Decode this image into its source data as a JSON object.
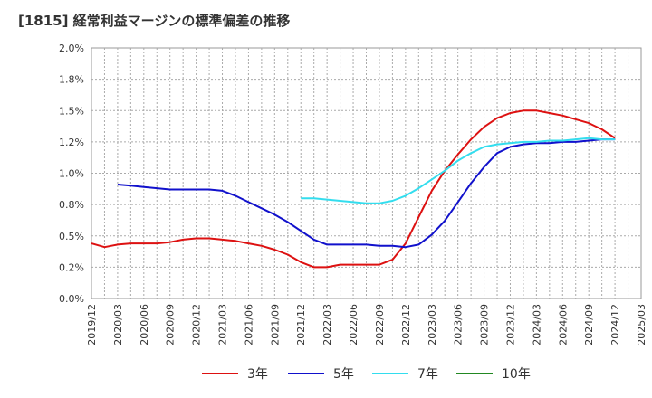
{
  "chart_data": {
    "type": "line",
    "title": "[1815]  経常利益マージンの標準偏差の推移",
    "ylim": [
      0.0,
      2.0
    ],
    "y_ticks": [
      0.0,
      0.25,
      0.5,
      0.75,
      1.0,
      1.25,
      1.5,
      1.75,
      2.0
    ],
    "y_tick_labels": [
      "0.0%",
      "0.2%",
      "0.5%",
      "0.8%",
      "1.0%",
      "1.2%",
      "1.5%",
      "1.8%",
      "2.0%"
    ],
    "x_tick_labels": [
      "2019/12",
      "2020/03",
      "2020/06",
      "2020/09",
      "2020/12",
      "2021/03",
      "2021/06",
      "2021/09",
      "2021/12",
      "2022/03",
      "2022/06",
      "2022/09",
      "2022/12",
      "2023/03",
      "2023/06",
      "2023/09",
      "2023/12",
      "2024/03",
      "2024/06",
      "2024/09",
      "2024/12",
      "2025/03"
    ],
    "grid": true,
    "legend_position": "bottom",
    "series": [
      {
        "name": "3年",
        "color": "#dd1111",
        "values": [
          0.44,
          0.41,
          0.43,
          0.44,
          0.44,
          0.44,
          0.45,
          0.47,
          0.48,
          0.48,
          0.47,
          0.46,
          0.44,
          0.42,
          0.39,
          0.35,
          0.29,
          0.25,
          0.25,
          0.27,
          0.27,
          0.27,
          0.27,
          0.31,
          0.44,
          0.65,
          0.86,
          1.02,
          1.15,
          1.27,
          1.37,
          1.44,
          1.48,
          1.5,
          1.5,
          1.48,
          1.46,
          1.43,
          1.4,
          1.35,
          1.28,
          null
        ]
      },
      {
        "name": "5年",
        "color": "#1111cc",
        "values": [
          null,
          null,
          0.91,
          0.9,
          0.89,
          0.88,
          0.87,
          0.87,
          0.87,
          0.87,
          0.86,
          0.82,
          0.77,
          0.72,
          0.67,
          0.61,
          0.54,
          0.47,
          0.43,
          0.43,
          0.43,
          0.43,
          0.42,
          0.42,
          0.41,
          0.43,
          0.51,
          0.62,
          0.77,
          0.92,
          1.05,
          1.16,
          1.21,
          1.23,
          1.24,
          1.24,
          1.25,
          1.25,
          1.26,
          1.27,
          1.27,
          null
        ]
      },
      {
        "name": "7年",
        "color": "#33ddee",
        "values": [
          null,
          null,
          null,
          null,
          null,
          null,
          null,
          null,
          null,
          null,
          null,
          null,
          null,
          null,
          null,
          null,
          0.8,
          0.8,
          0.79,
          0.78,
          0.77,
          0.76,
          0.76,
          0.78,
          0.82,
          0.88,
          0.95,
          1.02,
          1.1,
          1.16,
          1.21,
          1.23,
          1.24,
          1.25,
          1.25,
          1.26,
          1.26,
          1.27,
          1.28,
          1.27,
          1.27,
          null
        ]
      },
      {
        "name": "10年",
        "color": "#228822",
        "values": []
      }
    ]
  }
}
